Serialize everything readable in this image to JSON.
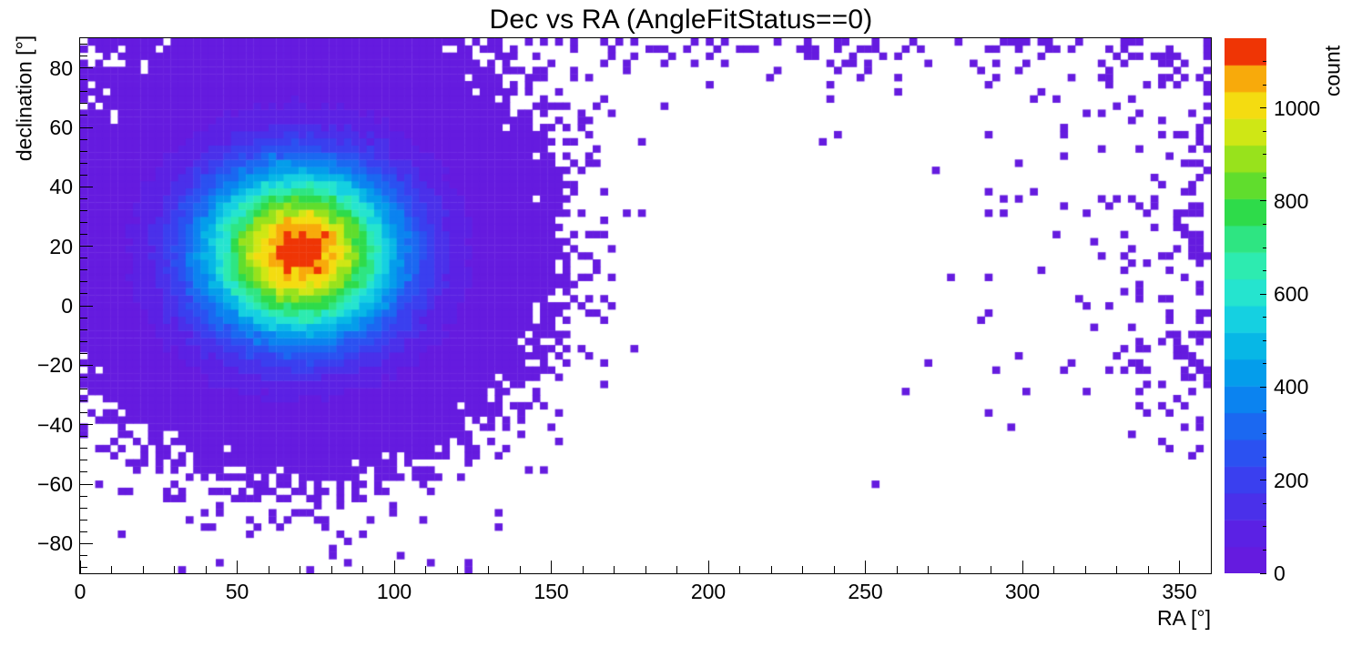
{
  "chart_data": {
    "type": "heatmap",
    "title": "Dec vs RA (AngleFitStatus==0)",
    "xlabel": "RA [°]",
    "ylabel": "declination [°]",
    "zlabel": "count",
    "xlim": [
      0,
      360
    ],
    "ylim": [
      -90,
      90
    ],
    "zlim": [
      0,
      1150
    ],
    "x_major_ticks": [
      0,
      50,
      100,
      150,
      200,
      250,
      300,
      350
    ],
    "x_minor_step": 10,
    "y_major_ticks": [
      -80,
      -60,
      -40,
      -20,
      0,
      20,
      40,
      60,
      80
    ],
    "y_minor_step": 4,
    "z_major_ticks": [
      0,
      200,
      400,
      600,
      800,
      1000
    ],
    "z_minor_step": 50,
    "bins": {
      "nx": 150,
      "ny": 75
    },
    "n_contours": 20,
    "background_color": "#ffffff",
    "palette_stops": [
      {
        "t": 0.0,
        "color": "#6a18dc"
      },
      {
        "t": 0.08,
        "color": "#5a22e4"
      },
      {
        "t": 0.16,
        "color": "#3e3aee"
      },
      {
        "t": 0.24,
        "color": "#2656f2"
      },
      {
        "t": 0.32,
        "color": "#0c80f0"
      },
      {
        "t": 0.4,
        "color": "#00aae8"
      },
      {
        "t": 0.48,
        "color": "#16d2e0"
      },
      {
        "t": 0.55,
        "color": "#2deec6"
      },
      {
        "t": 0.62,
        "color": "#2ee688"
      },
      {
        "t": 0.68,
        "color": "#2eda44"
      },
      {
        "t": 0.75,
        "color": "#7cdf20"
      },
      {
        "t": 0.82,
        "color": "#cbe815"
      },
      {
        "t": 0.87,
        "color": "#f4e112"
      },
      {
        "t": 0.92,
        "color": "#f8b30c"
      },
      {
        "t": 0.955,
        "color": "#f57607"
      },
      {
        "t": 0.98,
        "color": "#ee2505"
      },
      {
        "t": 1.0,
        "color": "#e51104"
      }
    ],
    "distribution": {
      "description": "2D histogram of reconstructed event sky positions. Dense quasi-Gaussian cluster centered near RA 70°, Dec +18° peaking at ~1150 counts/bin with rainbow contour rings (red core ~±10°, yellow ~±20°, green ~±30°, cyan ~±40°, blue ~±50°), broad solid violet halo covering roughly RA 0–150° and Dec −50° to +90°, ragged Poisson speckle fringe beyond, sparse speckles along the Dec≈+90° edge at all RA and near the RA≈360° edge down to Dec≈−45°, and an empty white region around RA 170–300° below Dec≈+70°.",
      "components": [
        {
          "kind": "gaussian2d",
          "amplitude": 1150,
          "x_mean": 70,
          "y_mean": 18,
          "x_sigma": 22,
          "y_sigma": 20
        },
        {
          "kind": "gaussian2d",
          "amplitude": 18,
          "x_mean": 70,
          "y_mean": 30,
          "x_sigma": 30,
          "y_sigma": 34
        },
        {
          "kind": "top_edge_band",
          "amplitude": 0.45,
          "scale_deg": 7
        },
        {
          "kind": "right_edge_band",
          "amplitude": 0.5,
          "scale_deg": 20,
          "dec_fade_start": -55,
          "dec_fade_end": -30
        },
        {
          "kind": "uniform",
          "amplitude": 0.0006
        }
      ],
      "noise": "poisson",
      "seed": 7
    }
  }
}
